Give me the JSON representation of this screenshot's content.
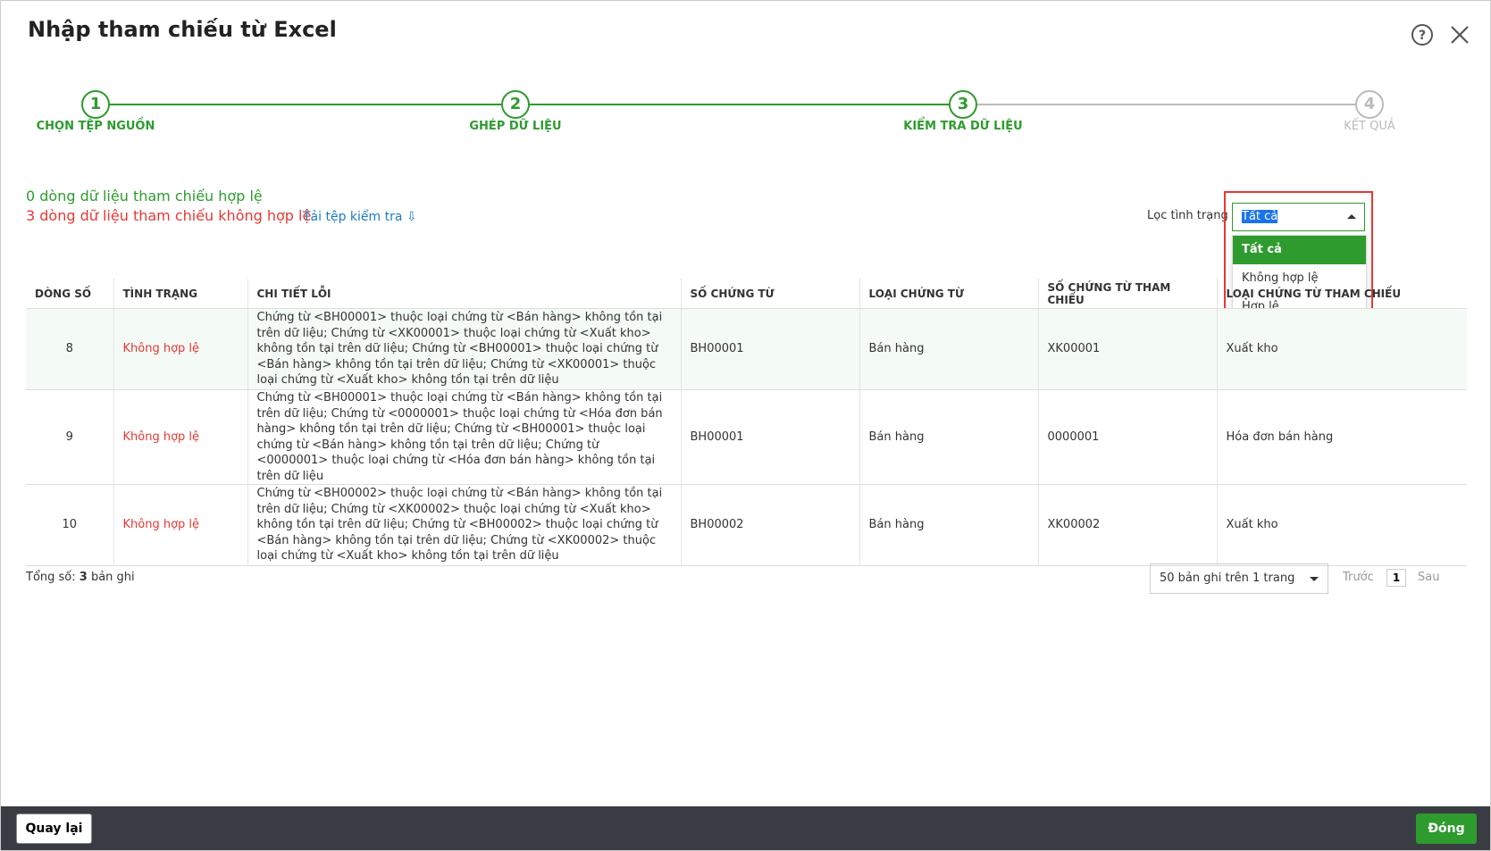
{
  "header": {
    "title": "Nhập tham chiếu từ Excel"
  },
  "steps": [
    {
      "number": 1,
      "label": "CHỌN TỆP NGUỒN"
    },
    {
      "number": 2,
      "label": "GHÉP DỮ LIỆU"
    },
    {
      "number": 3,
      "label": "KIỂM TRA DỮ LIỆU"
    },
    {
      "number": 4,
      "label": "KẾT QUẢ"
    }
  ],
  "summary": {
    "valid": "0 dòng dữ liệu tham chiếu hợp lệ",
    "invalid": "3 dòng dữ liệu tham chiếu không hợp lệ",
    "download": "Tải tệp kiểm tra"
  },
  "filter": {
    "label": "Lọc tình trạng",
    "selected": "Tất cả",
    "options": [
      "Tất cả",
      "Không hợp lệ",
      "Hợp lệ"
    ]
  },
  "table": {
    "columns": [
      "DÒNG SỐ",
      "TÌNH TRẠNG",
      "CHI TIẾT LỖI",
      "SỐ CHỨNG TỪ",
      "LOẠI CHỨNG TỪ",
      "SỐ CHỨNG TỪ THAM CHIẾU",
      "LOẠI CHỨNG TỪ THAM CHIẾU"
    ],
    "rows": [
      [
        8,
        "Không hợp lệ",
        "Chứng từ <BH00001> thuộc loại chứng từ <Bán hàng> không tồn tại trên dữ liệu; Chứng từ <XK00001> thuộc loại chứng từ <Xuất kho> không tồn tại trên dữ liệu; Chứng từ <BH00001> thuộc loại chứng từ <Bán hàng> không tồn tại trên dữ liệu; Chứng từ <XK00001> thuộc loại chứng từ <Xuất kho> không tồn tại trên dữ liệu",
        "BH00001",
        "Bán hàng",
        "XK00001",
        "Xuất kho"
      ],
      [
        9,
        "Không hợp lệ",
        "Chứng từ <BH00001> thuộc loại chứng từ <Bán hàng> không tồn tại trên dữ liệu; Chứng từ <0000001> thuộc loại chứng từ <Hóa đơn bán hàng> không tồn tại trên dữ liệu; Chứng từ <BH00001> thuộc loại chứng từ <Bán hàng> không tồn tại trên dữ liệu; Chứng từ <0000001> thuộc loại chứng từ <Hóa đơn bán hàng> không tồn tại trên dữ liệu",
        "BH00001",
        "Bán hàng",
        "0000001",
        "Hóa đơn bán hàng"
      ],
      [
        10,
        "Không hợp lệ",
        "Chứng từ <BH00002> thuộc loại chứng từ <Bán hàng> không tồn tại trên dữ liệu; Chứng từ <XK00002> thuộc loại chứng từ <Xuất kho> không tồn tại trên dữ liệu; Chứng từ <BH00002> thuộc loại chứng từ <Bán hàng> không tồn tại trên dữ liệu; Chứng từ <XK00002> thuộc loại chứng từ <Xuất kho> không tồn tại trên dữ liệu",
        "BH00002",
        "Bán hàng",
        "XK00002",
        "Xuất kho"
      ]
    ]
  },
  "footer": {
    "total_label": "Tổng số:",
    "total": 3,
    "total_unit": "bản ghi",
    "page_size": "50 bản ghi trên 1 trang",
    "prev": "Trước",
    "page": 1,
    "next": "Sau"
  },
  "buttons": {
    "back": "Quay lại",
    "close": "Đóng"
  }
}
